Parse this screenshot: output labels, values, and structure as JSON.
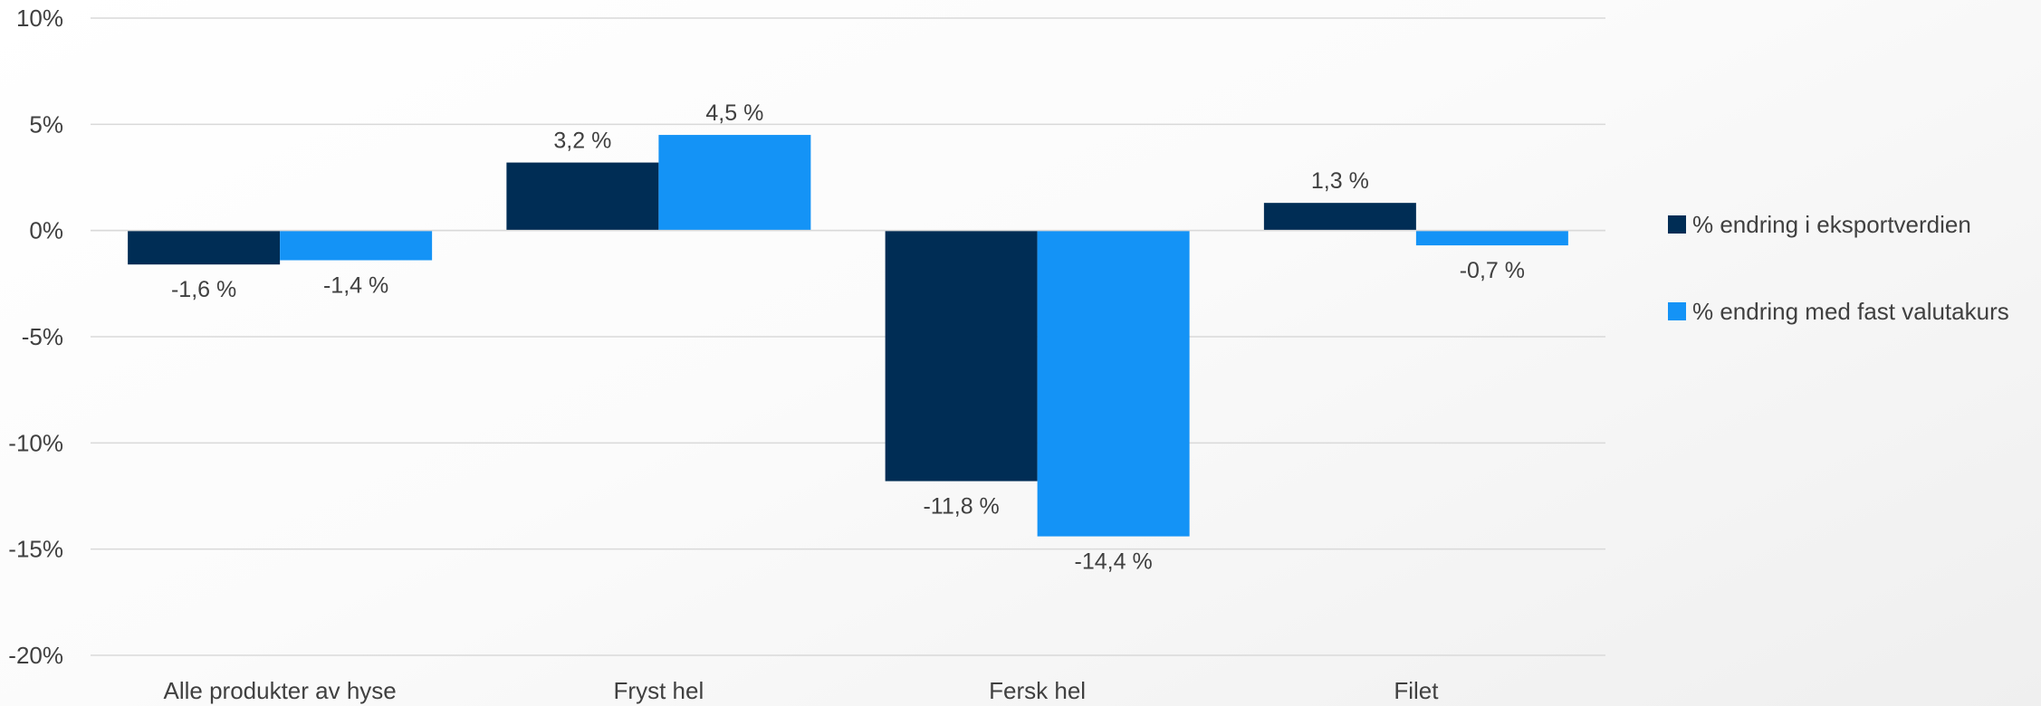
{
  "chart_data": {
    "type": "bar",
    "title": "",
    "xlabel": "",
    "ylabel": "",
    "categories": [
      "Alle produkter av hyse",
      "Fryst hel",
      "Fersk hel",
      "Filet"
    ],
    "series": [
      {
        "name": "% endring i eksportverdien",
        "color": "#002d55",
        "values": [
          -1.6,
          3.2,
          -11.8,
          1.3
        ],
        "labels": [
          "-1,6 %",
          "3,2 %",
          "-11,8 %",
          "1,3 %"
        ]
      },
      {
        "name": "% endring med fast valutakurs",
        "color": "#1493f6",
        "values": [
          -1.4,
          4.5,
          -14.4,
          -0.7
        ],
        "labels": [
          "-1,4 %",
          "4,5 %",
          "-14,4 %",
          "-0,7 %"
        ]
      }
    ],
    "ylim": [
      -20,
      10
    ],
    "yticks": [
      10,
      5,
      0,
      -5,
      -10,
      -15,
      -20
    ],
    "ytick_labels": [
      "10%",
      "5%",
      "0%",
      "-5%",
      "-10%",
      "-15%",
      "-20%"
    ],
    "grid": true,
    "legend_position": "right"
  }
}
